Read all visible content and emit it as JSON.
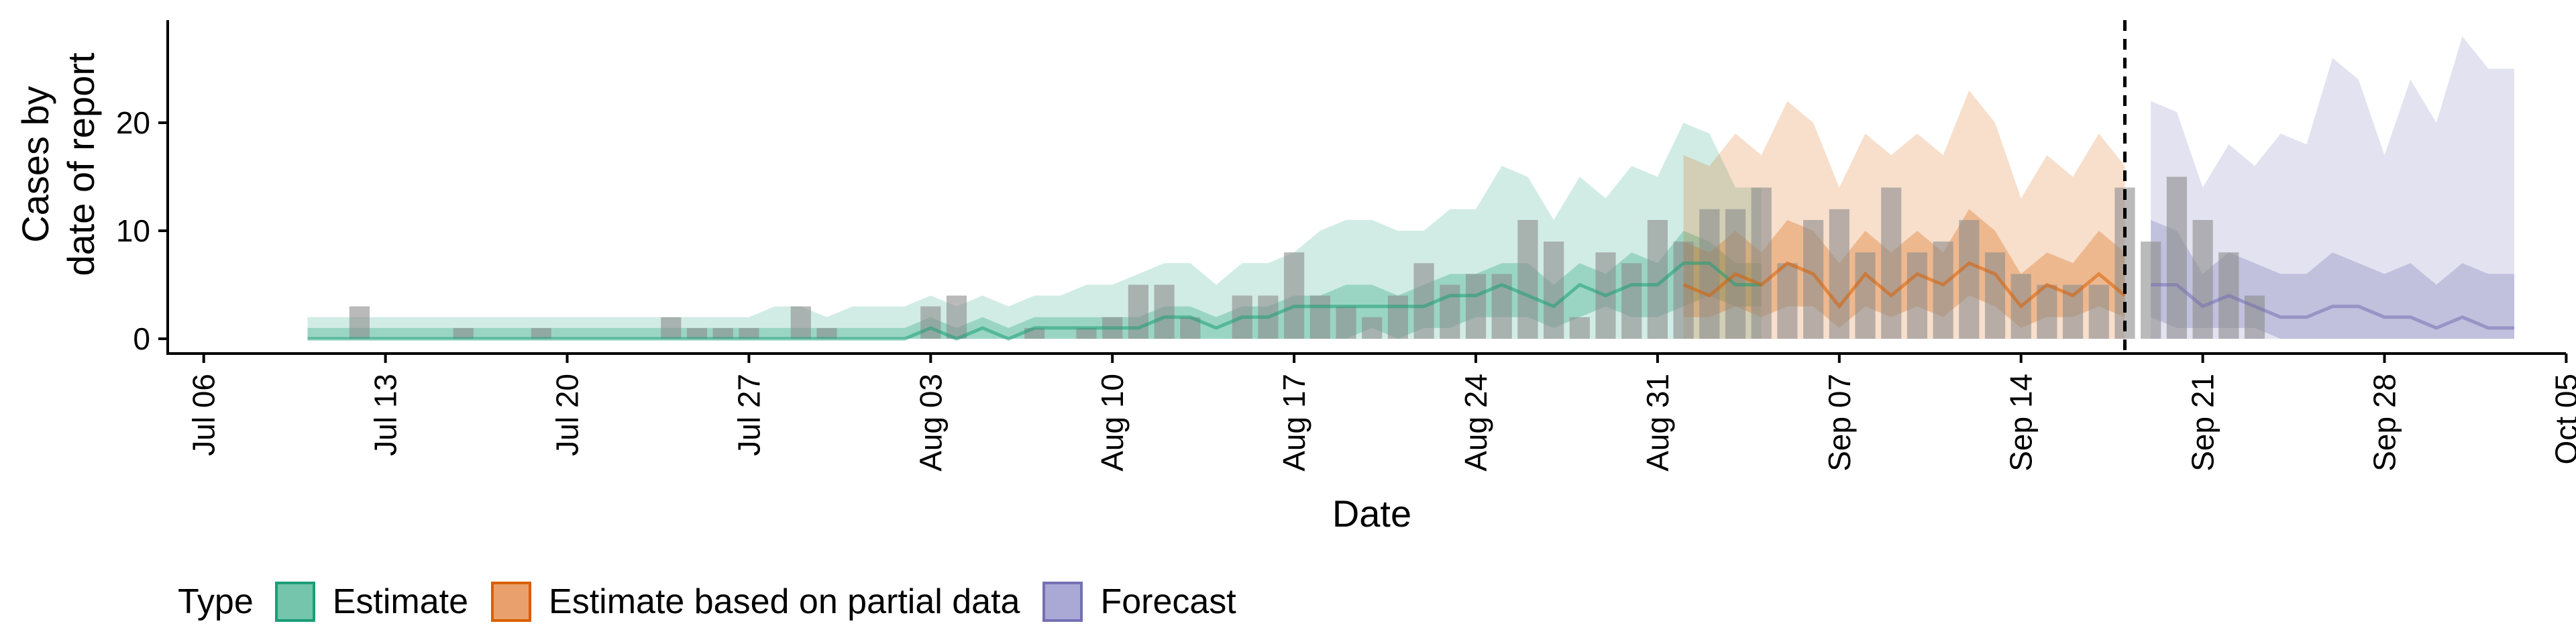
{
  "chart_data": {
    "type": "area",
    "xlabel": "Date",
    "ylabel": [
      "Cases by",
      "date of report"
    ],
    "ylim": [
      0,
      30
    ],
    "y_ticks": [
      0,
      10,
      20
    ],
    "x_range": [
      "2020-07-05",
      "2020-10-06"
    ],
    "x_ticks": [
      {
        "date": "2020-07-06",
        "label": "Jul 06"
      },
      {
        "date": "2020-07-13",
        "label": "Jul 13"
      },
      {
        "date": "2020-07-20",
        "label": "Jul 20"
      },
      {
        "date": "2020-07-27",
        "label": "Jul 27"
      },
      {
        "date": "2020-08-03",
        "label": "Aug 03"
      },
      {
        "date": "2020-08-10",
        "label": "Aug 10"
      },
      {
        "date": "2020-08-17",
        "label": "Aug 17"
      },
      {
        "date": "2020-08-24",
        "label": "Aug 24"
      },
      {
        "date": "2020-08-31",
        "label": "Aug 31"
      },
      {
        "date": "2020-09-07",
        "label": "Sep 07"
      },
      {
        "date": "2020-09-14",
        "label": "Sep 14"
      },
      {
        "date": "2020-09-21",
        "label": "Sep 21"
      },
      {
        "date": "2020-09-28",
        "label": "Sep 28"
      },
      {
        "date": "2020-10-05",
        "label": "Oct 05"
      }
    ],
    "forecast_line_date": "2020-09-18",
    "bars": {
      "start": "2020-07-10",
      "values": [
        0,
        0,
        3,
        0,
        0,
        0,
        1,
        0,
        0,
        1,
        0,
        0,
        0,
        0,
        2,
        1,
        1,
        1,
        0,
        3,
        1,
        0,
        0,
        0,
        3,
        4,
        0,
        0,
        1,
        0,
        1,
        2,
        5,
        5,
        2,
        0,
        4,
        4,
        8,
        4,
        3,
        2,
        4,
        7,
        5,
        6,
        6,
        11,
        9,
        2,
        8,
        7,
        11,
        9,
        12,
        12,
        14,
        7,
        11,
        12,
        8,
        14,
        8,
        9,
        11,
        8,
        6,
        5,
        5,
        5,
        14,
        9,
        15,
        11,
        8,
        4
      ]
    },
    "series": [
      {
        "name": "Estimate",
        "color": "#1b9e77",
        "start": "2020-07-10",
        "outer_lower": [
          0,
          0,
          0,
          0,
          0,
          0,
          0,
          0,
          0,
          0,
          0,
          0,
          0,
          0,
          0,
          0,
          0,
          0,
          0,
          0,
          0,
          0,
          0,
          0,
          0,
          0,
          0,
          0,
          0,
          0,
          0,
          0,
          0,
          0,
          0,
          0,
          0,
          0,
          0,
          0,
          0,
          0,
          0,
          0,
          0,
          0,
          0,
          0,
          0,
          0,
          0,
          0,
          0,
          0,
          0,
          0,
          0
        ],
        "outer_upper": [
          2,
          2,
          2,
          2,
          2,
          2,
          2,
          2,
          2,
          2,
          2,
          2,
          2,
          2,
          2,
          2,
          2,
          2,
          3,
          3,
          2,
          3,
          3,
          3,
          4,
          3,
          4,
          3,
          4,
          4,
          5,
          5,
          6,
          7,
          7,
          5,
          7,
          7,
          8,
          10,
          11,
          11,
          10,
          10,
          12,
          12,
          16,
          15,
          11,
          15,
          13,
          16,
          15,
          20,
          19,
          14,
          14
        ],
        "inner_lower": [
          0,
          0,
          0,
          0,
          0,
          0,
          0,
          0,
          0,
          0,
          0,
          0,
          0,
          0,
          0,
          0,
          0,
          0,
          0,
          0,
          0,
          0,
          0,
          0,
          0,
          0,
          0,
          0,
          0,
          0,
          0,
          0,
          0,
          0,
          0,
          0,
          0,
          0,
          0,
          0,
          0,
          1,
          0,
          1,
          1,
          2,
          2,
          2,
          1,
          2,
          3,
          2,
          2,
          3,
          4,
          3,
          3
        ],
        "inner_upper": [
          1,
          1,
          1,
          1,
          1,
          1,
          1,
          1,
          1,
          1,
          1,
          1,
          1,
          1,
          1,
          1,
          1,
          1,
          1,
          1,
          1,
          1,
          1,
          1,
          2,
          1,
          2,
          1,
          2,
          2,
          2,
          2,
          2,
          3,
          3,
          2,
          3,
          3,
          4,
          4,
          5,
          5,
          4,
          5,
          6,
          6,
          7,
          7,
          5,
          7,
          6,
          8,
          7,
          10,
          9,
          7,
          7
        ],
        "median": [
          0,
          0,
          0,
          0,
          0,
          0,
          0,
          0,
          0,
          0,
          0,
          0,
          0,
          0,
          0,
          0,
          0,
          0,
          0,
          0,
          0,
          0,
          0,
          0,
          1,
          0,
          1,
          0,
          1,
          1,
          1,
          1,
          1,
          2,
          2,
          1,
          2,
          2,
          3,
          3,
          3,
          3,
          3,
          3,
          4,
          4,
          5,
          4,
          3,
          5,
          4,
          5,
          5,
          7,
          7,
          5,
          5
        ]
      },
      {
        "name": "Estimate based on partial data",
        "color": "#d95f02",
        "start": "2020-09-01",
        "outer_lower": [
          0,
          0,
          0,
          0,
          0,
          0,
          0,
          0,
          0,
          0,
          0,
          0,
          0,
          0,
          0,
          0,
          0,
          0
        ],
        "outer_upper": [
          17,
          16,
          19,
          17,
          22,
          20,
          14,
          19,
          17,
          19,
          17,
          23,
          20,
          13,
          17,
          15,
          19,
          16
        ],
        "inner_lower": [
          2,
          2,
          3,
          2,
          3,
          3,
          1,
          3,
          2,
          3,
          2,
          4,
          3,
          1,
          2,
          2,
          3,
          2
        ],
        "inner_upper": [
          9,
          8,
          10,
          8,
          11,
          10,
          7,
          10,
          8,
          10,
          8,
          12,
          10,
          6,
          8,
          7,
          10,
          8
        ],
        "median": [
          5,
          4,
          6,
          5,
          7,
          6,
          3,
          6,
          4,
          6,
          5,
          7,
          6,
          3,
          5,
          4,
          6,
          4
        ]
      },
      {
        "name": "Forecast",
        "color": "#7570b3",
        "start": "2020-09-19",
        "outer_lower": [
          0,
          0,
          0,
          0,
          0,
          0,
          0,
          0,
          0,
          0,
          0,
          0,
          0,
          0,
          0
        ],
        "outer_upper": [
          22,
          21,
          14,
          18,
          16,
          19,
          18,
          26,
          24,
          17,
          24,
          20,
          28,
          25,
          25
        ],
        "inner_lower": [
          2,
          1,
          1,
          1,
          1,
          0,
          0,
          0,
          0,
          0,
          0,
          0,
          0,
          0,
          0
        ],
        "inner_upper": [
          11,
          10,
          6,
          8,
          7,
          6,
          6,
          8,
          7,
          6,
          7,
          5,
          7,
          6,
          6
        ],
        "median": [
          5,
          5,
          3,
          4,
          3,
          2,
          2,
          3,
          3,
          2,
          2,
          1,
          2,
          1,
          1
        ]
      }
    ],
    "legend": {
      "title": "Type",
      "position": "bottom"
    }
  }
}
